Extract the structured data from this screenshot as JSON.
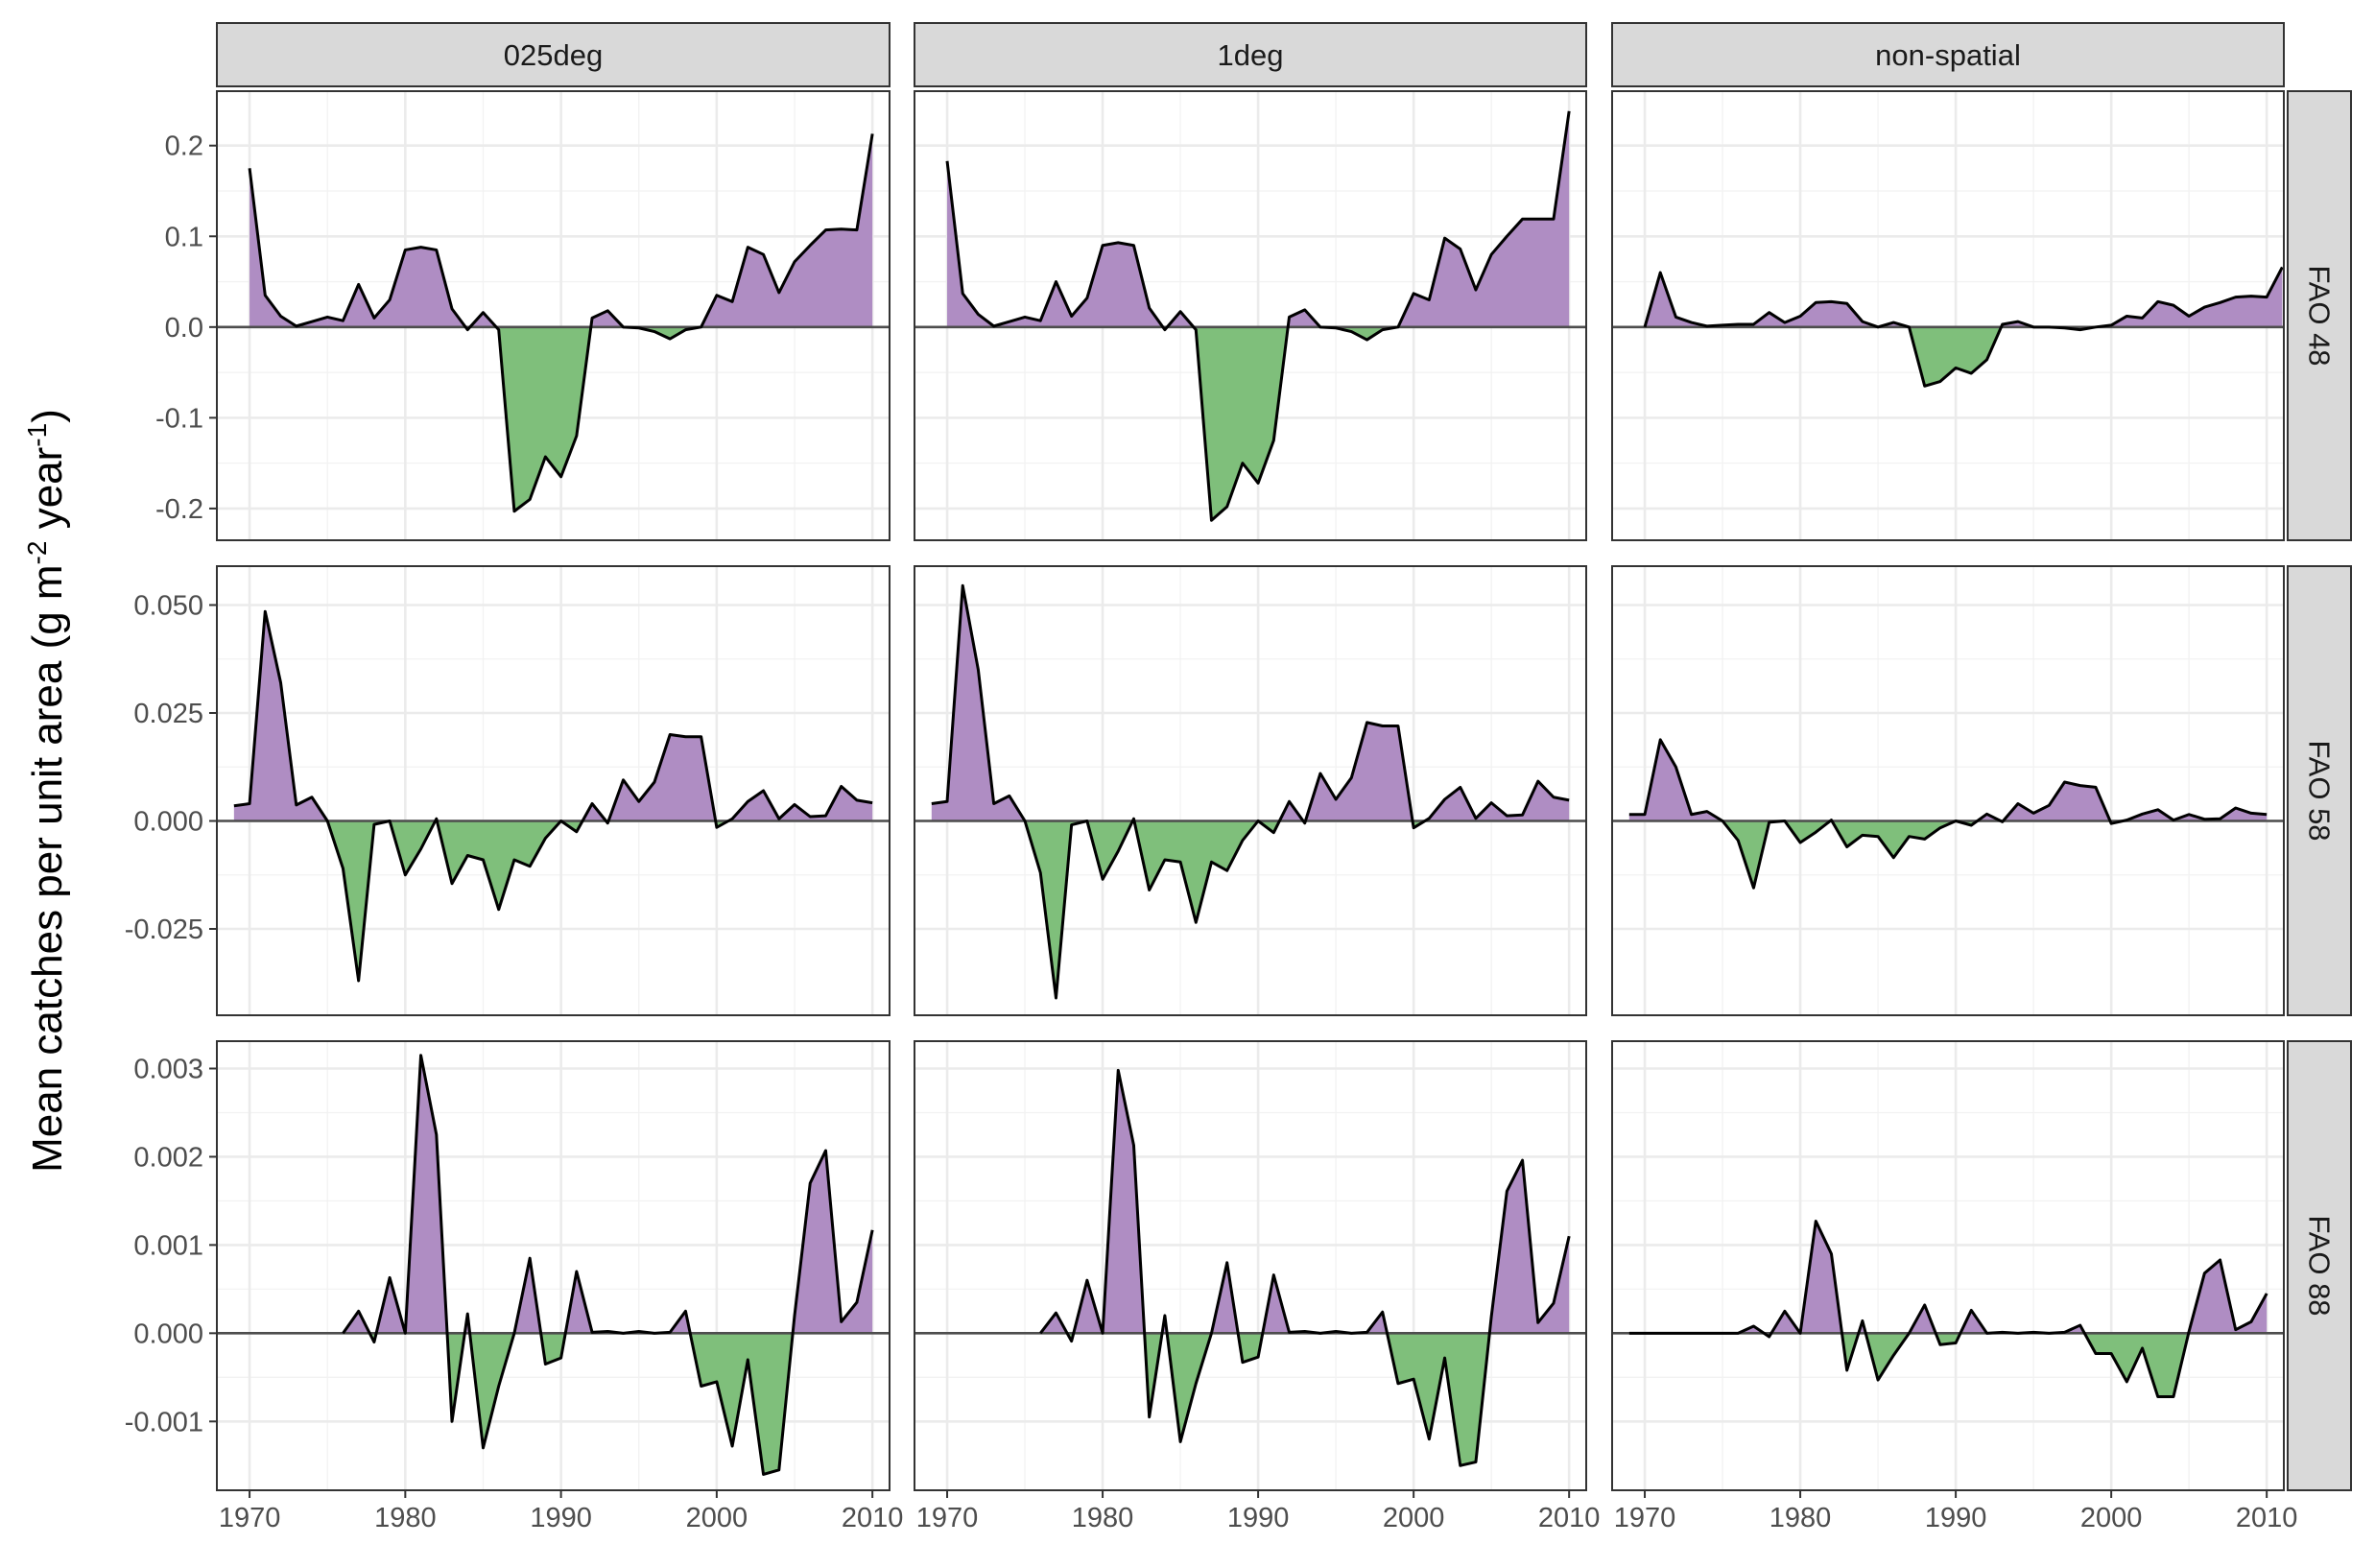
{
  "chart_data": {
    "type": "area",
    "ylabel": "Mean catches per unit area (g m",
    "ylabel_sup1": "-2",
    "ylabel_mid": " year",
    "ylabel_sup2": "-1",
    "ylabel_end": ")",
    "xlabel": "",
    "columns": [
      "025deg",
      "1deg",
      "non-spatial"
    ],
    "rows": [
      "FAO 48",
      "FAO 58",
      "FAO 88"
    ],
    "x_ticks": [
      1970,
      1980,
      1990,
      2000,
      2010
    ],
    "x_tick_labels": [
      "1970",
      "1980",
      "1990",
      "2000",
      "2010"
    ],
    "xlim": [
      1967.9,
      2011.1
    ],
    "positive_color": "#af8dc3",
    "negative_color": "#7fbf7b",
    "line_color": "#000000",
    "grid": true,
    "panels_by_row": [
      {
        "row": "FAO 48",
        "y_ticks": [
          -0.2,
          -0.1,
          0.0,
          0.1,
          0.2
        ],
        "y_tick_labels": [
          "-0.2",
          "-0.1",
          "0.0",
          "0.1",
          "0.2"
        ],
        "ylim": [
          -0.235,
          0.26
        ],
        "series": [
          {
            "column": "025deg",
            "x_start": 1970,
            "values": [
              0.175,
              0.035,
              0.012,
              0.001,
              0.006,
              0.011,
              0.007,
              0.047,
              0.01,
              0.03,
              0.085,
              0.088,
              0.085,
              0.02,
              -0.003,
              0.016,
              -0.003,
              -0.203,
              -0.19,
              -0.143,
              -0.165,
              -0.12,
              0.01,
              0.018,
              0.0,
              -0.001,
              -0.005,
              -0.013,
              -0.003,
              0.0,
              0.035,
              0.028,
              0.088,
              0.08,
              0.038,
              0.072,
              0.09,
              0.107,
              0.108,
              0.107,
              0.213
            ]
          },
          {
            "column": "1deg",
            "x_start": 1970,
            "values": [
              0.183,
              0.037,
              0.014,
              0.001,
              0.006,
              0.011,
              0.007,
              0.05,
              0.012,
              0.032,
              0.09,
              0.093,
              0.09,
              0.021,
              -0.003,
              0.017,
              -0.003,
              -0.213,
              -0.198,
              -0.15,
              -0.172,
              -0.125,
              0.011,
              0.019,
              0.0,
              -0.001,
              -0.005,
              -0.014,
              -0.003,
              0.0,
              0.037,
              0.03,
              0.098,
              0.086,
              0.041,
              0.08,
              0.1,
              0.119,
              0.119,
              0.119,
              0.238
            ]
          },
          {
            "column": "non-spatial",
            "x_start": 1970,
            "values": [
              0.0,
              0.06,
              0.011,
              0.005,
              0.001,
              0.002,
              0.003,
              0.003,
              0.016,
              0.005,
              0.012,
              0.027,
              0.028,
              0.026,
              0.006,
              0.0,
              0.005,
              0.0,
              -0.065,
              -0.06,
              -0.045,
              -0.051,
              -0.036,
              0.003,
              0.006,
              0.0,
              0.0,
              -0.001,
              -0.003,
              0.0,
              0.002,
              0.012,
              0.01,
              0.028,
              0.024,
              0.012,
              0.022,
              0.027,
              0.033,
              0.034,
              0.033,
              0.066
            ]
          }
        ]
      },
      {
        "row": "FAO 58",
        "y_ticks": [
          -0.025,
          0.0,
          0.025,
          0.05
        ],
        "y_tick_labels": [
          "-0.025",
          "0.000",
          "0.025",
          "0.050"
        ],
        "ylim": [
          -0.045,
          0.059
        ],
        "series": [
          {
            "column": "025deg",
            "x_start": 1969,
            "values": [
              0.0035,
              0.004,
              0.0485,
              0.032,
              0.0037,
              0.0055,
              0.0,
              -0.011,
              -0.037,
              -0.0008,
              0.0,
              -0.0125,
              -0.0065,
              0.0005,
              -0.0145,
              -0.008,
              -0.009,
              -0.0205,
              -0.009,
              -0.0105,
              -0.004,
              0.0,
              -0.0025,
              0.004,
              -0.0005,
              0.0095,
              0.0045,
              0.009,
              0.02,
              0.0195,
              0.0195,
              -0.0015,
              0.0005,
              0.0045,
              0.007,
              0.0005,
              0.0038,
              0.001,
              0.0012,
              0.008,
              0.0048,
              0.0042
            ]
          },
          {
            "column": "1deg",
            "x_start": 1969,
            "values": [
              0.004,
              0.0045,
              0.0545,
              0.035,
              0.004,
              0.0058,
              0.0,
              -0.012,
              -0.041,
              -0.0009,
              0.0,
              -0.0135,
              -0.007,
              0.0005,
              -0.016,
              -0.009,
              -0.0095,
              -0.0235,
              -0.0095,
              -0.0115,
              -0.0045,
              0.0,
              -0.0027,
              0.0045,
              -0.0005,
              0.011,
              0.005,
              0.01,
              0.0228,
              0.022,
              0.022,
              -0.0016,
              0.0006,
              0.005,
              0.0078,
              0.0006,
              0.0042,
              0.0012,
              0.0014,
              0.0092,
              0.0055,
              0.0048
            ]
          },
          {
            "column": "non-spatial",
            "x_start": 1969,
            "values": [
              0.0015,
              0.0015,
              0.0188,
              0.0125,
              0.0015,
              0.0022,
              0.0,
              -0.0045,
              -0.0155,
              -0.0003,
              0.0,
              -0.005,
              -0.0026,
              0.0002,
              -0.006,
              -0.0033,
              -0.0036,
              -0.0085,
              -0.0036,
              -0.0042,
              -0.0016,
              0.0,
              -0.001,
              0.0016,
              -0.0002,
              0.004,
              0.0018,
              0.0036,
              0.009,
              0.0082,
              0.0078,
              -0.0006,
              0.0002,
              0.0016,
              0.0026,
              0.0002,
              0.0015,
              0.0004,
              0.0005,
              0.003,
              0.0018,
              0.0015
            ]
          }
        ]
      },
      {
        "row": "FAO 88",
        "y_ticks": [
          -0.001,
          0.0,
          0.001,
          0.002,
          0.003
        ],
        "y_tick_labels": [
          "-0.001",
          "0.000",
          "0.001",
          "0.002",
          "0.003"
        ],
        "ylim": [
          -0.00178,
          0.00331
        ],
        "series": [
          {
            "column": "025deg",
            "x_start": 1976,
            "values": [
              0.0,
              0.00025,
              -0.0001,
              0.00063,
              0.0,
              0.00315,
              0.00225,
              -0.001,
              0.00022,
              -0.0013,
              -0.0006,
              0.0,
              0.00085,
              -0.00035,
              -0.00028,
              0.0007,
              1e-05,
              2e-05,
              0.0,
              2e-05,
              0.0,
              1e-05,
              0.00025,
              -0.0006,
              -0.00055,
              -0.00128,
              -0.0003,
              -0.0016,
              -0.00155,
              0.0002,
              0.0017,
              0.00207,
              0.00013,
              0.00035,
              0.00117
            ]
          },
          {
            "column": "1deg",
            "x_start": 1976,
            "values": [
              0.0,
              0.00023,
              -9e-05,
              0.0006,
              0.0,
              0.00298,
              0.00213,
              -0.00095,
              0.0002,
              -0.00123,
              -0.00057,
              0.0,
              0.0008,
              -0.00033,
              -0.00027,
              0.00066,
              1e-05,
              2e-05,
              0.0,
              2e-05,
              0.0,
              1e-05,
              0.00024,
              -0.00057,
              -0.00052,
              -0.0012,
              -0.00028,
              -0.0015,
              -0.00146,
              0.00019,
              0.00161,
              0.00196,
              0.00012,
              0.00034,
              0.0011
            ]
          },
          {
            "column": "non-spatial",
            "x_start": 1969,
            "values": [
              0.0,
              0.0,
              0.0,
              0.0,
              0.0,
              0.0,
              0.0,
              0.0,
              8e-05,
              -4e-05,
              0.00025,
              0.0,
              0.00127,
              0.0009,
              -0.00042,
              0.00014,
              -0.00053,
              -0.00025,
              0.0,
              0.00032,
              -0.00013,
              -0.00011,
              0.00026,
              0.0,
              1e-05,
              0.0,
              1e-05,
              0.0,
              1e-05,
              9e-05,
              -0.00023,
              -0.00023,
              -0.00055,
              -0.00017,
              -0.00072,
              -0.00072,
              2e-05,
              0.00068,
              0.00083,
              4e-05,
              0.00013,
              0.00045
            ]
          }
        ]
      }
    ]
  }
}
